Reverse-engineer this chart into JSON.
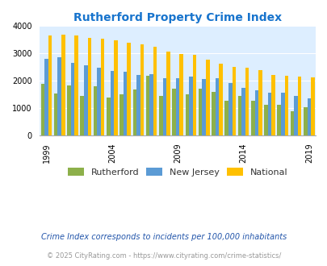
{
  "title": "Rutherford Property Crime Index",
  "title_color": "#1874cd",
  "background_color": "#ddeeff",
  "fig_bg_color": "#ffffff",
  "years": [
    1999,
    2000,
    2001,
    2002,
    2003,
    2004,
    2005,
    2006,
    2007,
    2008,
    2009,
    2010,
    2011,
    2012,
    2013,
    2014,
    2015,
    2016,
    2017,
    2018,
    2019
  ],
  "rutherford": [
    1880,
    1520,
    1830,
    1430,
    1800,
    1390,
    1490,
    1660,
    2180,
    1430,
    1710,
    1500,
    1700,
    1590,
    1270,
    1430,
    1260,
    1100,
    1110,
    880,
    1010
  ],
  "new_jersey": [
    2780,
    2850,
    2640,
    2560,
    2450,
    2350,
    2300,
    2200,
    2220,
    2090,
    2080,
    2150,
    2060,
    2080,
    1900,
    1720,
    1630,
    1560,
    1550,
    1430,
    1350
  ],
  "national": [
    3630,
    3660,
    3640,
    3560,
    3510,
    3450,
    3380,
    3310,
    3230,
    3050,
    2960,
    2920,
    2760,
    2610,
    2500,
    2470,
    2380,
    2200,
    2180,
    2150,
    2100
  ],
  "rutherford_color": "#8db04a",
  "nj_color": "#5b9bd5",
  "national_color": "#ffc000",
  "ylim": [
    0,
    4000
  ],
  "yticks": [
    0,
    1000,
    2000,
    3000,
    4000
  ],
  "xlabel_years": [
    1999,
    2004,
    2009,
    2014,
    2019
  ],
  "legend_labels": [
    "Rutherford",
    "New Jersey",
    "National"
  ],
  "footnote1": "Crime Index corresponds to incidents per 100,000 inhabitants",
  "footnote2": "© 2025 CityRating.com - https://www.cityrating.com/crime-statistics/",
  "footnote1_color": "#2255aa",
  "footnote2_color": "#999999"
}
